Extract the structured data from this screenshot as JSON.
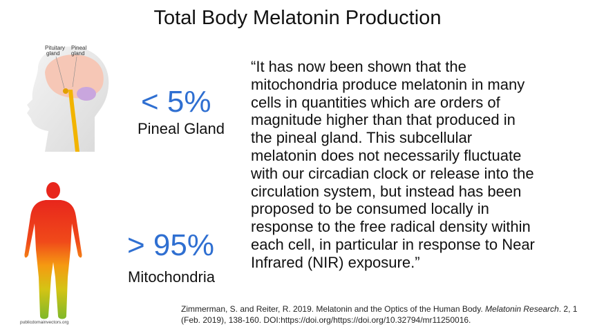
{
  "title": "Total Body Melatonin Production",
  "head_figure": {
    "label_pituitary_1": "Pituitary",
    "label_pituitary_2": "gland",
    "label_pineal_1": "Pineal",
    "label_pineal_2": "gland"
  },
  "body_figure": {
    "credit": "publicdomainvectors.org"
  },
  "pineal": {
    "percent": "< 5%",
    "label": "Pineal Gland"
  },
  "mitochondria": {
    "percent": "> 95%",
    "label": "Mitochondria"
  },
  "quote": "“It has now been shown that the\nmitochondria produce melatonin in many\ncells in quantities which are orders of\nmagnitude higher than that produced in\nthe pineal gland. This subcellular\nmelatonin does not necessarily fluctuate\nwith our circadian clock or release into the\ncirculation system, but instead has been\nproposed to be consumed locally in\nresponse to the free radical density within\neach cell, in particular in response to Near\nInfrared (NIR) exposure.”",
  "citation": {
    "part1": "Zimmerman, S. and Reiter, R. 2019. Melatonin and the Optics of the Human Body. ",
    "journal": "Melatonin Research",
    "part2": ". 2, 1 (Feb. 2019), 138-160. DOI:https://doi.org/https://doi.org/10.32794/mr11250016."
  },
  "colors": {
    "accent": "#2f6fd1",
    "brain": "#f6c7b6",
    "pineal": "#c9a6de",
    "spine": "#f2b400"
  }
}
